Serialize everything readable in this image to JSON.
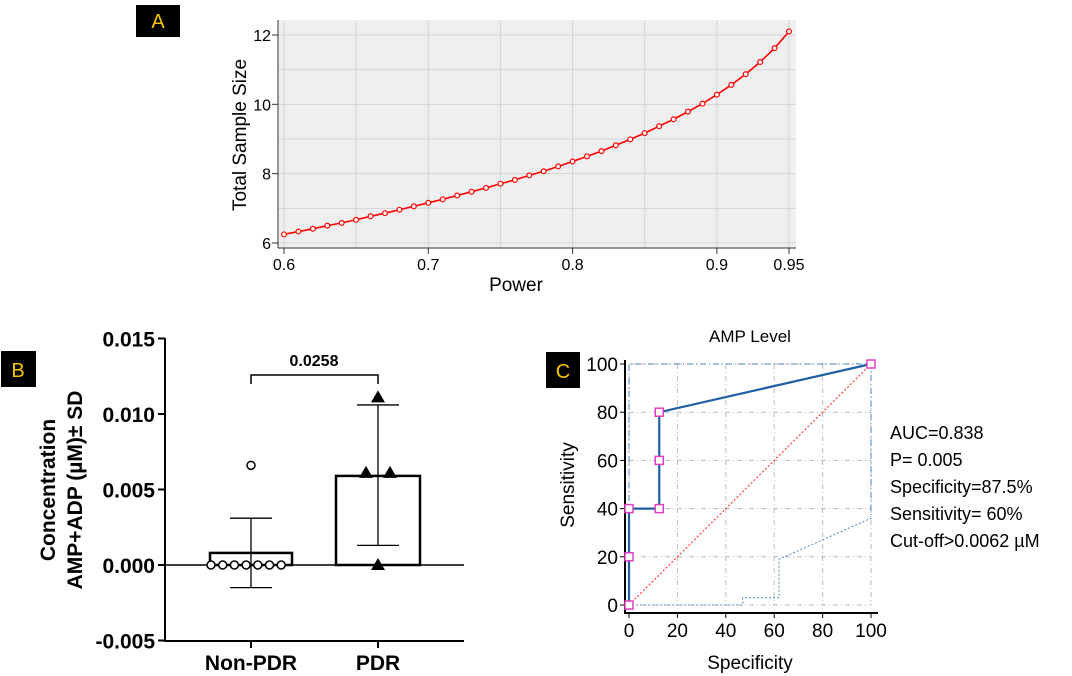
{
  "panels": {
    "a": "A",
    "b": "B",
    "c": "C"
  },
  "colors": {
    "label_bg": "#000000",
    "label_fg": "#f5c400",
    "line_a": "#ff0000",
    "roc": "#1f5fa8",
    "roc_marker": "#e040c0",
    "diag": "#ff4040"
  },
  "chart_data": [
    {
      "type": "line",
      "panel": "A",
      "title": "",
      "xlabel": "Power",
      "ylabel": "Total Sample Size",
      "xlim": [
        0.6,
        0.95
      ],
      "ylim": [
        6,
        12.3
      ],
      "xticks": [
        "0.6",
        "0.7",
        "0.8",
        "0.9",
        "0.95"
      ],
      "yticks": [
        "6",
        "8",
        "10",
        "12"
      ],
      "grid": true,
      "x": [
        0.6,
        0.61,
        0.62,
        0.63,
        0.64,
        0.65,
        0.66,
        0.67,
        0.68,
        0.69,
        0.7,
        0.71,
        0.72,
        0.73,
        0.74,
        0.75,
        0.76,
        0.77,
        0.78,
        0.79,
        0.8,
        0.81,
        0.82,
        0.83,
        0.84,
        0.85,
        0.86,
        0.87,
        0.88,
        0.89,
        0.9,
        0.91,
        0.92,
        0.93,
        0.94,
        0.95
      ],
      "y": [
        6.25,
        6.33,
        6.41,
        6.5,
        6.58,
        6.67,
        6.77,
        6.86,
        6.96,
        7.06,
        7.16,
        7.26,
        7.37,
        7.48,
        7.59,
        7.71,
        7.82,
        7.95,
        8.07,
        8.21,
        8.35,
        8.5,
        8.65,
        8.82,
        8.99,
        9.17,
        9.37,
        9.57,
        9.79,
        10.02,
        10.28,
        10.56,
        10.87,
        11.22,
        11.62,
        12.1
      ]
    },
    {
      "type": "bar",
      "panel": "B",
      "ylabel_line1": "Concentration",
      "ylabel_line2": "AMP+ADP (µM)± SD",
      "ylim": [
        -0.005,
        0.015
      ],
      "yticks": [
        "-0.005",
        "0.000",
        "0.005",
        "0.010",
        "0.015"
      ],
      "yticks_values": [
        -0.005,
        0,
        0.005,
        0.01,
        0.015
      ],
      "categories": [
        "Non-PDR",
        "PDR"
      ],
      "values": [
        0.0008,
        0.0059
      ],
      "sd_low": [
        -0.0015,
        0.0013
      ],
      "sd_high": [
        0.0031,
        0.0106
      ],
      "points": [
        [
          0,
          0,
          0,
          0,
          0,
          0,
          0,
          0.0066
        ],
        [
          0.0111,
          0.0061,
          0.0061,
          0.0
        ]
      ],
      "point_markers": [
        "open-circle",
        "filled-triangle"
      ],
      "significance": "0.0258"
    },
    {
      "type": "line",
      "panel": "C",
      "title": "AMP Level",
      "xlabel": "Specificity",
      "ylabel": "Sensitivity",
      "xlim": [
        0,
        100
      ],
      "ylim": [
        0,
        100
      ],
      "xticks": [
        "0",
        "20",
        "40",
        "60",
        "80",
        "100"
      ],
      "yticks": [
        "0",
        "20",
        "40",
        "60",
        "80",
        "100"
      ],
      "grid": true,
      "roc": {
        "x": [
          0,
          0,
          0,
          12.5,
          12.5,
          12.5,
          100
        ],
        "y": [
          0,
          20,
          40,
          40,
          60,
          80,
          100
        ]
      },
      "ci_upper": {
        "x": [
          0,
          0,
          100,
          100
        ],
        "y": [
          0,
          100,
          100,
          36
        ]
      },
      "ci_lower": {
        "x": [
          3,
          47,
          47,
          62,
          62,
          100
        ],
        "y": [
          0,
          0,
          3,
          3,
          19,
          36
        ]
      },
      "reference": {
        "x": [
          0,
          100
        ],
        "y": [
          0,
          100
        ]
      },
      "annotations": [
        "AUC=0.838",
        "P= 0.005",
        "Specificity=87.5%",
        "Sensitivity= 60%",
        "Cut-off>0.0062 µM"
      ]
    }
  ]
}
